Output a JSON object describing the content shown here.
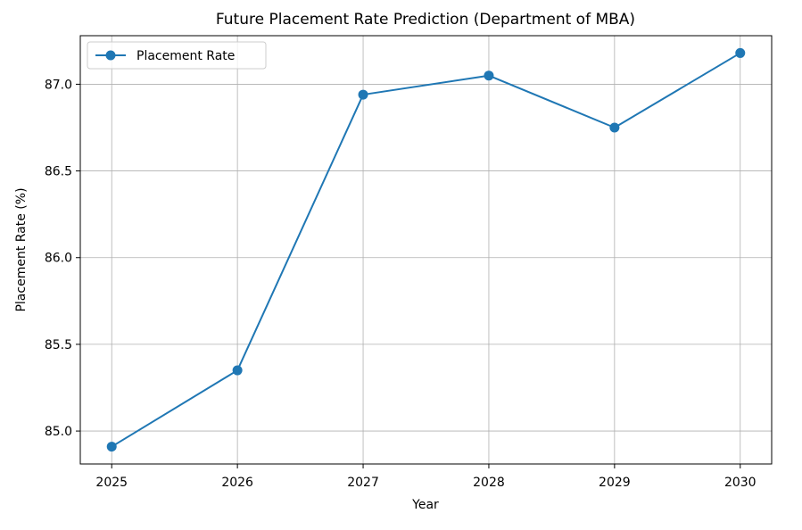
{
  "chart_data": {
    "type": "line",
    "title": "Future Placement Rate Prediction (Department of MBA)",
    "xlabel": "Year",
    "ylabel": "Placement Rate (%)",
    "x": [
      2025,
      2026,
      2027,
      2028,
      2029,
      2030
    ],
    "series": [
      {
        "name": "Placement Rate",
        "values": [
          84.91,
          85.35,
          86.94,
          87.05,
          86.75,
          87.18
        ],
        "color": "#1f77b4",
        "marker": "circle"
      }
    ],
    "xticks": [
      "2025",
      "2026",
      "2027",
      "2028",
      "2029",
      "2030"
    ],
    "yticks": [
      "85.0",
      "85.5",
      "86.0",
      "86.5",
      "87.0"
    ],
    "ytick_values": [
      85.0,
      85.5,
      86.0,
      86.5,
      87.0
    ],
    "xlim": [
      2024.75,
      2030.25
    ],
    "ylim": [
      84.81,
      87.28
    ],
    "grid": true,
    "legend": "top-left"
  }
}
